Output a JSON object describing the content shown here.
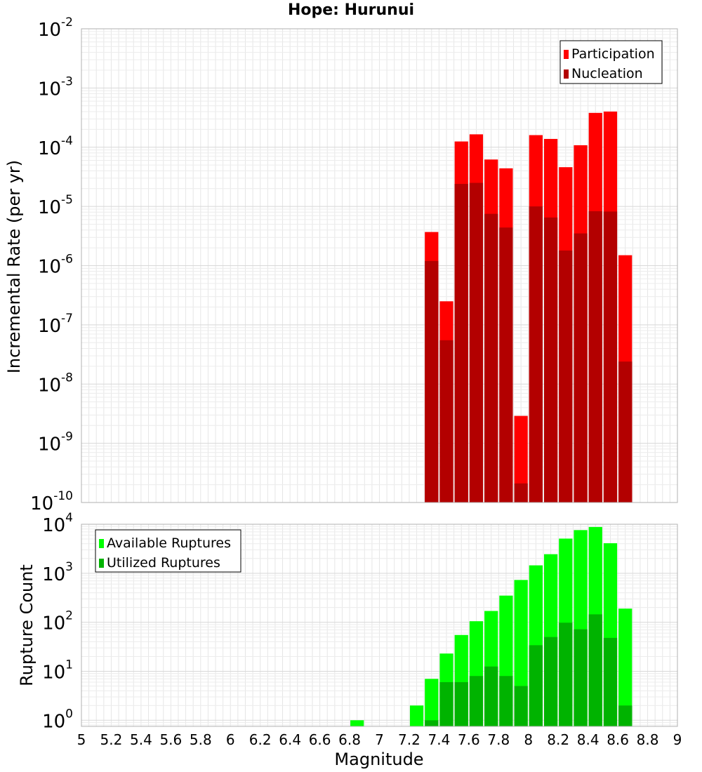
{
  "chart_data": [
    {
      "type": "bar",
      "title": "Hope: Hurunui",
      "xlabel": "",
      "ylabel": "Incremental Rate (per yr)",
      "yscale": "log",
      "ylim": [
        1e-10,
        0.01
      ],
      "xlim": [
        5,
        9
      ],
      "grid": true,
      "legend_position": "top-right",
      "y_tick_labels": [
        {
          "base": "10",
          "exp": "-10",
          "value": 1e-10
        },
        {
          "base": "10",
          "exp": "-9",
          "value": 1e-09
        },
        {
          "base": "10",
          "exp": "-8",
          "value": 1e-08
        },
        {
          "base": "10",
          "exp": "-7",
          "value": 1e-07
        },
        {
          "base": "10",
          "exp": "-6",
          "value": 1e-06
        },
        {
          "base": "10",
          "exp": "-5",
          "value": 1e-05
        },
        {
          "base": "10",
          "exp": "-4",
          "value": 0.0001
        },
        {
          "base": "10",
          "exp": "-3",
          "value": 0.001
        },
        {
          "base": "10",
          "exp": "-2",
          "value": 0.01
        }
      ],
      "x": [
        7.35,
        7.45,
        7.55,
        7.65,
        7.75,
        7.85,
        7.95,
        8.05,
        8.15,
        8.25,
        8.35,
        8.45,
        8.55,
        8.65
      ],
      "series": [
        {
          "name": "Participation",
          "color": "#ff0000",
          "values": [
            3.7e-06,
            2.5e-07,
            0.000125,
            0.000165,
            6.2e-05,
            4.4e-05,
            2.9e-09,
            0.00016,
            0.000138,
            4.6e-05,
            0.000108,
            0.00038,
            0.0004,
            1.5e-06
          ]
        },
        {
          "name": "Nucleation",
          "color": "#b30000",
          "values": [
            1.2e-06,
            5.5e-08,
            2.4e-05,
            2.5e-05,
            7.5e-06,
            4.4e-06,
            2.1e-10,
            1e-05,
            6.5e-06,
            1.8e-06,
            3.5e-06,
            8.3e-06,
            8.2e-06,
            2.4e-08
          ]
        }
      ]
    },
    {
      "type": "bar",
      "title": "",
      "xlabel": "Magnitude",
      "ylabel": "Rupture Count",
      "yscale": "log",
      "ylim": [
        0.75,
        10000
      ],
      "xlim": [
        5,
        9
      ],
      "grid": true,
      "legend_position": "top-left",
      "y_tick_labels": [
        {
          "base": "10",
          "exp": "0",
          "value": 1
        },
        {
          "base": "10",
          "exp": "1",
          "value": 10
        },
        {
          "base": "10",
          "exp": "2",
          "value": 100
        },
        {
          "base": "10",
          "exp": "3",
          "value": 1000
        },
        {
          "base": "10",
          "exp": "4",
          "value": 10000
        }
      ],
      "x_tick_labels": [
        "5",
        "5.2",
        "5.4",
        "5.6",
        "5.8",
        "6",
        "6.2",
        "6.4",
        "6.6",
        "6.8",
        "7",
        "7.2",
        "7.4",
        "7.6",
        "7.8",
        "8",
        "8.2",
        "8.4",
        "8.6",
        "8.8",
        "9"
      ],
      "x": [
        6.85,
        7.25,
        7.35,
        7.45,
        7.55,
        7.65,
        7.75,
        7.85,
        7.95,
        8.05,
        8.15,
        8.25,
        8.35,
        8.45,
        8.55,
        8.65
      ],
      "series": [
        {
          "name": "Available Ruptures",
          "color": "#00ff00",
          "values": [
            1,
            2,
            7,
            23,
            55,
            105,
            170,
            350,
            730,
            1450,
            2450,
            5100,
            7600,
            8800,
            4100,
            190
          ]
        },
        {
          "name": "Utilized Ruptures",
          "color": "#00b300",
          "values": [
            null,
            null,
            1,
            6,
            6,
            8,
            12.5,
            8,
            5,
            34,
            50,
            98,
            72,
            145,
            48,
            2
          ]
        }
      ]
    }
  ]
}
